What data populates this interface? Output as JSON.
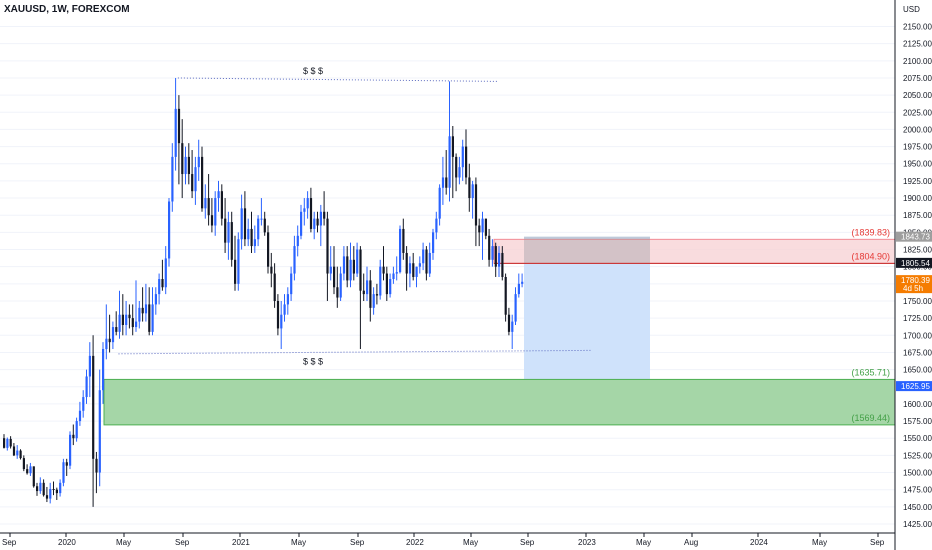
{
  "header": {
    "title": "XAUUSD, 1W, FOREXCOM"
  },
  "axis": {
    "currency": "USD"
  },
  "colors": {
    "up": "#2962ff",
    "down": "#131722",
    "grid": "#f0f3fa",
    "sell_zone": "#f8d3d6",
    "sell_border": "#f28b94",
    "buy_zone": "#a5d6a7",
    "buy_border": "#4caf50",
    "projection": "#cfe2fb",
    "red_label": "#e53935",
    "green_label": "#43a047",
    "gray_tag": "#9e9e9e",
    "current_tag": "#2962ff",
    "timer_tag": "#f57c00"
  },
  "chart_data": {
    "type": "candlestick",
    "symbol": "XAUUSD",
    "timeframe": "1W",
    "ylim": [
      1410,
      2180
    ],
    "y_ticks": [
      1425,
      1450,
      1475,
      1500,
      1525,
      1550,
      1575,
      1600,
      1625,
      1650,
      1675,
      1700,
      1725,
      1750,
      1775,
      1800,
      1825,
      1850,
      1875,
      1900,
      1925,
      1950,
      1975,
      2000,
      2025,
      2050,
      2075,
      2100,
      2125,
      2150
    ],
    "x_labels": [
      "Sep",
      "2020",
      "May",
      "Sep",
      "2021",
      "May",
      "Sep",
      "2022",
      "May",
      "Sep",
      "2023",
      "May",
      "Aug",
      "2024",
      "May",
      "Sep"
    ],
    "annotations": [
      {
        "text": "$ $ $",
        "price": 2085
      },
      {
        "text": "$ $ $",
        "price": 1662
      }
    ],
    "liquidity_lines": [
      {
        "name": "top-liquidity-line",
        "from": {
          "bar": 53,
          "price": 2075
        },
        "to": {
          "bar": 150,
          "price": 2070
        }
      },
      {
        "name": "bottom-liquidity-line",
        "from": {
          "bar": 35,
          "price": 1673
        },
        "to": {
          "bar": 178,
          "price": 1678
        }
      }
    ],
    "zones": [
      {
        "name": "sell-zone",
        "top": 1839.83,
        "bottom": 1804.9,
        "label_top": "(1839.83)",
        "label_bottom": "(1804.90)"
      },
      {
        "name": "buy-zone",
        "top": 1635.71,
        "bottom": 1569.44,
        "label_top": "(1635.71)",
        "label_bottom": "(1569.44)"
      }
    ],
    "projection": {
      "top": 1843.73,
      "bottom": 1633
    },
    "price_tags": [
      {
        "name": "tag-1843",
        "price": 1843.73,
        "text": "1843.73",
        "kind": "gray"
      },
      {
        "name": "tag-1805",
        "price": 1805.54,
        "text": "1805.54",
        "kind": "dark"
      },
      {
        "name": "tag-1780",
        "price": 1780.39,
        "text": "1780.39",
        "sub": "4d 5h",
        "kind": "orange"
      },
      {
        "name": "tag-1625",
        "price": 1625.95,
        "text": "1625.95",
        "kind": "blue"
      }
    ],
    "candles": [
      [
        1550,
        1556,
        1535,
        1536
      ],
      [
        1536,
        1551,
        1532,
        1549
      ],
      [
        1549,
        1553,
        1535,
        1538
      ],
      [
        1538,
        1543,
        1524,
        1525
      ],
      [
        1525,
        1540,
        1520,
        1532
      ],
      [
        1532,
        1534,
        1519,
        1521
      ],
      [
        1521,
        1525,
        1502,
        1505
      ],
      [
        1505,
        1512,
        1497,
        1499
      ],
      [
        1499,
        1514,
        1495,
        1509
      ],
      [
        1509,
        1509,
        1478,
        1480
      ],
      [
        1480,
        1485,
        1466,
        1473
      ],
      [
        1473,
        1493,
        1469,
        1485
      ],
      [
        1485,
        1490,
        1465,
        1467
      ],
      [
        1467,
        1479,
        1457,
        1462
      ],
      [
        1462,
        1485,
        1455,
        1476
      ],
      [
        1476,
        1487,
        1467,
        1475
      ],
      [
        1475,
        1478,
        1460,
        1470
      ],
      [
        1470,
        1490,
        1465,
        1485
      ],
      [
        1485,
        1520,
        1480,
        1515
      ],
      [
        1515,
        1520,
        1495,
        1510
      ],
      [
        1510,
        1560,
        1505,
        1555
      ],
      [
        1555,
        1570,
        1540,
        1550
      ],
      [
        1550,
        1580,
        1545,
        1575
      ],
      [
        1575,
        1603,
        1568,
        1590
      ],
      [
        1590,
        1620,
        1580,
        1610
      ],
      [
        1610,
        1650,
        1600,
        1640
      ],
      [
        1640,
        1690,
        1610,
        1670
      ],
      [
        1670,
        1700,
        1450,
        1520
      ],
      [
        1520,
        1530,
        1470,
        1500
      ],
      [
        1500,
        1650,
        1480,
        1620
      ],
      [
        1620,
        1690,
        1600,
        1680
      ],
      [
        1680,
        1745,
        1665,
        1695
      ],
      [
        1695,
        1730,
        1675,
        1690
      ],
      [
        1690,
        1720,
        1680,
        1712
      ],
      [
        1712,
        1735,
        1700,
        1705
      ],
      [
        1705,
        1765,
        1695,
        1730
      ],
      [
        1730,
        1760,
        1700,
        1715
      ],
      [
        1715,
        1750,
        1700,
        1730
      ],
      [
        1730,
        1745,
        1710,
        1725
      ],
      [
        1725,
        1745,
        1700,
        1712
      ],
      [
        1712,
        1780,
        1705,
        1720
      ],
      [
        1720,
        1750,
        1710,
        1740
      ],
      [
        1740,
        1770,
        1720,
        1732
      ],
      [
        1732,
        1775,
        1720,
        1745
      ],
      [
        1745,
        1770,
        1700,
        1705
      ],
      [
        1705,
        1770,
        1700,
        1745
      ],
      [
        1745,
        1770,
        1730,
        1760
      ],
      [
        1760,
        1790,
        1745,
        1782
      ],
      [
        1782,
        1810,
        1765,
        1770
      ],
      [
        1770,
        1830,
        1760,
        1812
      ],
      [
        1812,
        1900,
        1800,
        1895
      ],
      [
        1895,
        1980,
        1880,
        1960
      ],
      [
        1960,
        2075,
        1940,
        2030
      ],
      [
        2030,
        2050,
        1920,
        1980
      ],
      [
        1980,
        2015,
        1900,
        1935
      ],
      [
        1935,
        1975,
        1920,
        1960
      ],
      [
        1960,
        1980,
        1920,
        1935
      ],
      [
        1935,
        1970,
        1900,
        1910
      ],
      [
        1910,
        1960,
        1890,
        1945
      ],
      [
        1945,
        1985,
        1925,
        1960
      ],
      [
        1960,
        1975,
        1880,
        1885
      ],
      [
        1885,
        1920,
        1870,
        1900
      ],
      [
        1900,
        1935,
        1860,
        1875
      ],
      [
        1875,
        1900,
        1850,
        1860
      ],
      [
        1860,
        1910,
        1845,
        1900
      ],
      [
        1900,
        1925,
        1880,
        1910
      ],
      [
        1910,
        1920,
        1860,
        1870
      ],
      [
        1870,
        1900,
        1820,
        1835
      ],
      [
        1835,
        1880,
        1810,
        1865
      ],
      [
        1865,
        1880,
        1800,
        1810
      ],
      [
        1810,
        1845,
        1765,
        1775
      ],
      [
        1775,
        1850,
        1765,
        1840
      ],
      [
        1840,
        1905,
        1825,
        1885
      ],
      [
        1885,
        1910,
        1830,
        1840
      ],
      [
        1840,
        1870,
        1830,
        1855
      ],
      [
        1855,
        1880,
        1820,
        1830
      ],
      [
        1830,
        1860,
        1820,
        1840
      ],
      [
        1840,
        1875,
        1830,
        1870
      ],
      [
        1870,
        1900,
        1860,
        1870
      ],
      [
        1870,
        1880,
        1845,
        1850
      ],
      [
        1850,
        1860,
        1790,
        1800
      ],
      [
        1800,
        1820,
        1770,
        1790
      ],
      [
        1790,
        1805,
        1740,
        1750
      ],
      [
        1750,
        1760,
        1700,
        1710
      ],
      [
        1710,
        1750,
        1680,
        1730
      ],
      [
        1730,
        1760,
        1720,
        1745
      ],
      [
        1745,
        1770,
        1730,
        1760
      ],
      [
        1760,
        1800,
        1750,
        1790
      ],
      [
        1790,
        1845,
        1780,
        1830
      ],
      [
        1830,
        1860,
        1815,
        1845
      ],
      [
        1845,
        1890,
        1840,
        1880
      ],
      [
        1880,
        1900,
        1860,
        1885
      ],
      [
        1885,
        1910,
        1870,
        1900
      ],
      [
        1900,
        1915,
        1850,
        1855
      ],
      [
        1855,
        1880,
        1840,
        1870
      ],
      [
        1870,
        1880,
        1850,
        1860
      ],
      [
        1860,
        1890,
        1830,
        1880
      ],
      [
        1880,
        1910,
        1860,
        1870
      ],
      [
        1870,
        1880,
        1750,
        1790
      ],
      [
        1790,
        1830,
        1780,
        1800
      ],
      [
        1800,
        1830,
        1760,
        1770
      ],
      [
        1770,
        1800,
        1740,
        1755
      ],
      [
        1755,
        1800,
        1750,
        1790
      ],
      [
        1790,
        1830,
        1780,
        1815
      ],
      [
        1815,
        1830,
        1770,
        1780
      ],
      [
        1780,
        1835,
        1770,
        1810
      ],
      [
        1810,
        1830,
        1780,
        1790
      ],
      [
        1790,
        1835,
        1785,
        1825
      ],
      [
        1825,
        1830,
        1680,
        1765
      ],
      [
        1765,
        1790,
        1750,
        1760
      ],
      [
        1760,
        1800,
        1750,
        1780
      ],
      [
        1780,
        1795,
        1720,
        1740
      ],
      [
        1740,
        1770,
        1730,
        1760
      ],
      [
        1760,
        1775,
        1745,
        1758
      ],
      [
        1758,
        1810,
        1752,
        1800
      ],
      [
        1800,
        1830,
        1780,
        1790
      ],
      [
        1790,
        1800,
        1750,
        1760
      ],
      [
        1760,
        1790,
        1755,
        1782
      ],
      [
        1782,
        1800,
        1775,
        1790
      ],
      [
        1790,
        1815,
        1780,
        1792
      ],
      [
        1792,
        1860,
        1790,
        1855
      ],
      [
        1855,
        1870,
        1810,
        1820
      ],
      [
        1820,
        1830,
        1765,
        1790
      ],
      [
        1790,
        1815,
        1770,
        1805
      ],
      [
        1805,
        1820,
        1780,
        1785
      ],
      [
        1785,
        1800,
        1770,
        1800
      ],
      [
        1800,
        1815,
        1790,
        1805
      ],
      [
        1805,
        1835,
        1795,
        1825
      ],
      [
        1825,
        1830,
        1780,
        1790
      ],
      [
        1790,
        1835,
        1785,
        1820
      ],
      [
        1820,
        1855,
        1810,
        1850
      ],
      [
        1850,
        1880,
        1840,
        1870
      ],
      [
        1870,
        1920,
        1860,
        1915
      ],
      [
        1915,
        1960,
        1890,
        1930
      ],
      [
        1930,
        1970,
        1905,
        1915
      ],
      [
        1915,
        2070,
        1895,
        1990
      ],
      [
        1990,
        2005,
        1900,
        1960
      ],
      [
        1960,
        1965,
        1910,
        1930
      ],
      [
        1930,
        1960,
        1920,
        1945
      ],
      [
        1945,
        1985,
        1925,
        1975
      ],
      [
        1975,
        2000,
        1920,
        1930
      ],
      [
        1930,
        1950,
        1880,
        1900
      ],
      [
        1900,
        1925,
        1870,
        1920
      ],
      [
        1920,
        1930,
        1830,
        1860
      ],
      [
        1860,
        1870,
        1830,
        1850
      ],
      [
        1850,
        1880,
        1810,
        1870
      ],
      [
        1870,
        1870,
        1840,
        1845
      ],
      [
        1845,
        1855,
        1800,
        1810
      ],
      [
        1810,
        1840,
        1800,
        1830
      ],
      [
        1830,
        1835,
        1785,
        1800
      ],
      [
        1800,
        1830,
        1785,
        1820
      ],
      [
        1820,
        1830,
        1780,
        1785
      ],
      [
        1785,
        1790,
        1720,
        1730
      ],
      [
        1730,
        1740,
        1700,
        1705
      ],
      [
        1705,
        1730,
        1680,
        1720
      ],
      [
        1720,
        1770,
        1715,
        1760
      ],
      [
        1760,
        1790,
        1755,
        1775
      ],
      [
        1775,
        1790,
        1770,
        1778
      ]
    ]
  }
}
